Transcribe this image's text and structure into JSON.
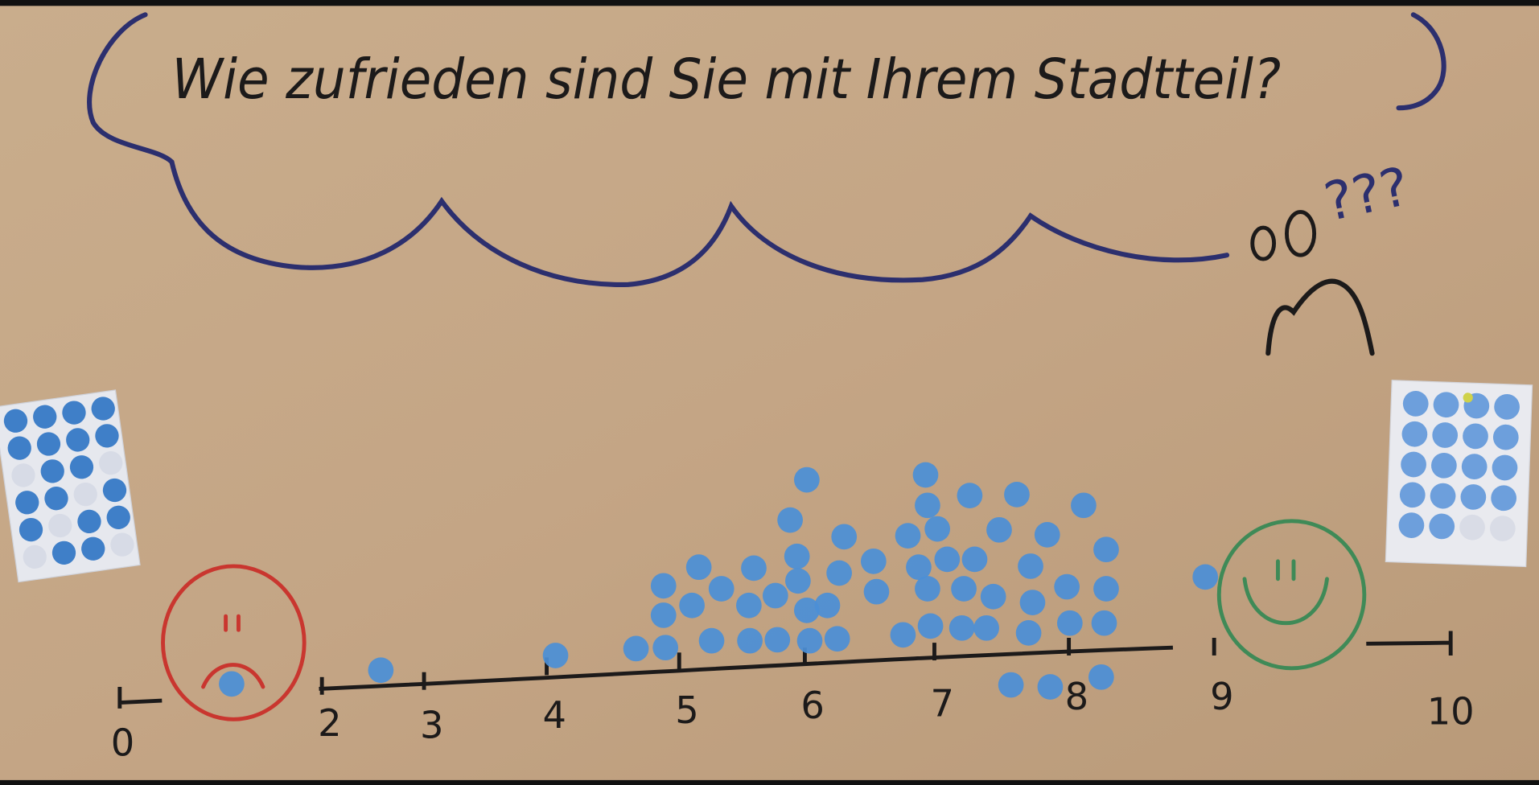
{
  "title": "Wie zufrieden sind Sie mit Ihrem Stadtteil?",
  "thought_marks": "???",
  "scale_labels": [
    "0",
    "2",
    "3",
    "4",
    "5",
    "6",
    "7",
    "8",
    "9",
    "10"
  ]
}
